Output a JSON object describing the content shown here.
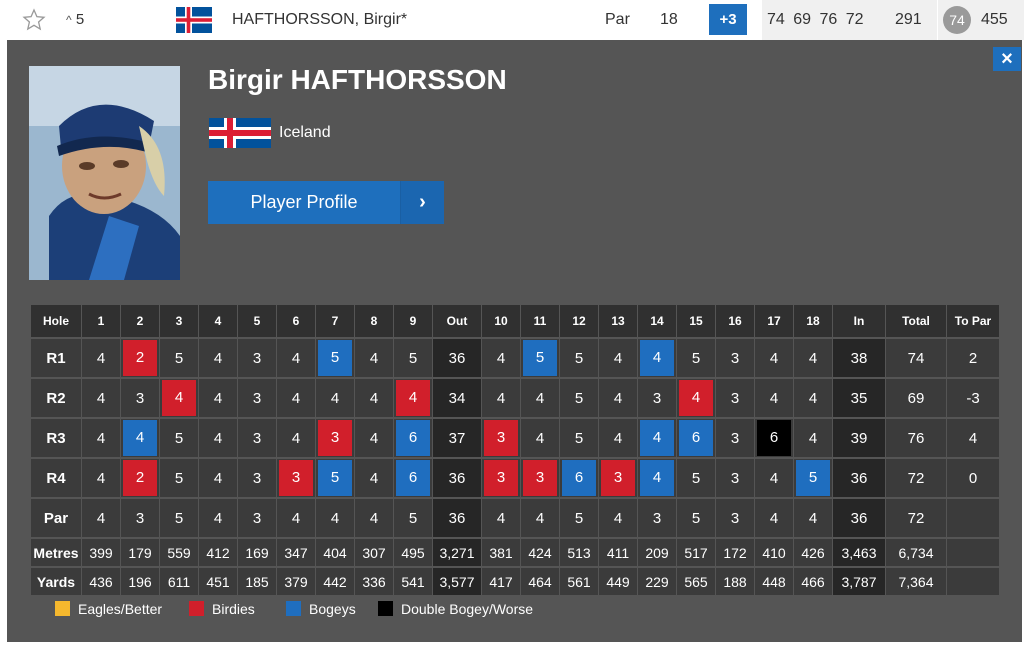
{
  "row": {
    "move": "5",
    "name": "HAFTHORSSON, Birgir*",
    "par_label": "Par",
    "thru": "18",
    "to_par": "+3",
    "rounds": "74 69 76 72",
    "total": "291",
    "position": "74",
    "points": "455"
  },
  "player": {
    "name": "Birgir HAFTHORSSON",
    "country": "Iceland",
    "profile_button": "Player Profile",
    "close": "×"
  },
  "scorecard": {
    "headers": [
      "Hole",
      "1",
      "2",
      "3",
      "4",
      "5",
      "6",
      "7",
      "8",
      "9",
      "Out",
      "10",
      "11",
      "12",
      "13",
      "14",
      "15",
      "16",
      "17",
      "18",
      "In",
      "Total",
      "To Par"
    ],
    "rows": [
      {
        "label": "R1",
        "cells": [
          "4",
          "2",
          "5",
          "4",
          "3",
          "4",
          "5",
          "4",
          "5",
          "36",
          "4",
          "5",
          "5",
          "4",
          "4",
          "5",
          "3",
          "4",
          "4",
          "38",
          "74",
          "2"
        ]
      },
      {
        "label": "R2",
        "cells": [
          "4",
          "3",
          "4",
          "4",
          "3",
          "4",
          "4",
          "4",
          "4",
          "34",
          "4",
          "4",
          "5",
          "4",
          "3",
          "4",
          "3",
          "4",
          "4",
          "35",
          "69",
          "-3"
        ]
      },
      {
        "label": "R3",
        "cells": [
          "4",
          "4",
          "5",
          "4",
          "3",
          "4",
          "3",
          "4",
          "6",
          "37",
          "3",
          "4",
          "5",
          "4",
          "4",
          "6",
          "3",
          "6",
          "4",
          "39",
          "76",
          "4"
        ]
      },
      {
        "label": "R4",
        "cells": [
          "4",
          "2",
          "5",
          "4",
          "3",
          "3",
          "5",
          "4",
          "6",
          "36",
          "3",
          "3",
          "6",
          "3",
          "4",
          "5",
          "3",
          "4",
          "5",
          "36",
          "72",
          "0"
        ]
      },
      {
        "label": "Par",
        "cells": [
          "4",
          "3",
          "5",
          "4",
          "3",
          "4",
          "4",
          "4",
          "5",
          "36",
          "4",
          "4",
          "5",
          "4",
          "3",
          "5",
          "3",
          "4",
          "4",
          "36",
          "72",
          ""
        ]
      }
    ],
    "metres": {
      "label": "Metres",
      "cells": [
        "399",
        "179",
        "559",
        "412",
        "169",
        "347",
        "404",
        "307",
        "495",
        "3,271",
        "381",
        "424",
        "513",
        "411",
        "209",
        "517",
        "172",
        "410",
        "426",
        "3,463",
        "6,734",
        ""
      ]
    },
    "yards": {
      "label": "Yards",
      "cells": [
        "436",
        "196",
        "611",
        "451",
        "185",
        "379",
        "442",
        "336",
        "541",
        "3,577",
        "417",
        "464",
        "561",
        "449",
        "229",
        "565",
        "188",
        "448",
        "466",
        "3,787",
        "7,364",
        ""
      ]
    }
  },
  "legend": [
    {
      "label": "Eagles/Better",
      "color": "#f5b82e"
    },
    {
      "label": "Birdies",
      "color": "#d11f2b"
    },
    {
      "label": "Bogeys",
      "color": "#1f6ebf"
    },
    {
      "label": "Double Bogey/Worse",
      "color": "#000000"
    }
  ]
}
